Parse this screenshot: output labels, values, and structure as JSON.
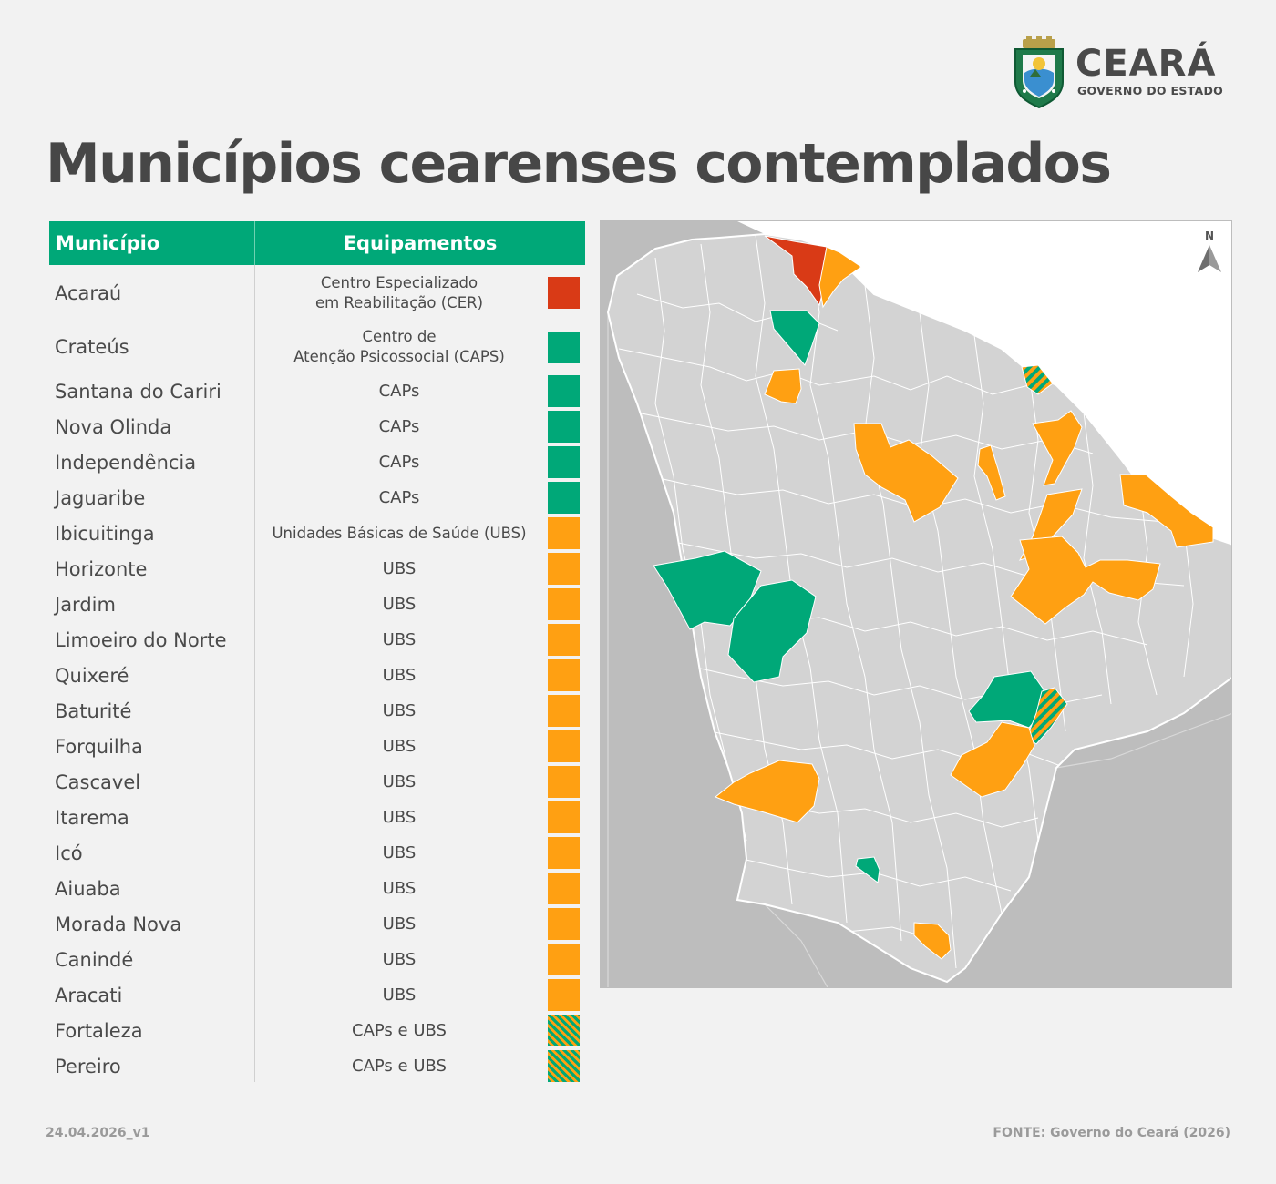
{
  "header": {
    "logo_name": "CEARÁ",
    "logo_subtitle": "GOVERNO DO ESTADO",
    "title": "Municípios cearenses contemplados"
  },
  "table": {
    "col_municipio": "Município",
    "col_equipamentos": "Equipamentos",
    "rows": [
      {
        "municipio": "Acaraú",
        "equip_line1": "Centro Especializado",
        "equip_line2": "em Reabilitação (CER)",
        "category": "CER"
      },
      {
        "municipio": "Crateús",
        "equip_line1": "Centro de",
        "equip_line2": "Atenção Psicossocial (CAPS)",
        "category": "CAPS"
      },
      {
        "municipio": "Santana do Cariri",
        "equipamento": "CAPs",
        "category": "CAPS"
      },
      {
        "municipio": "Nova Olinda",
        "equipamento": "CAPs",
        "category": "CAPS"
      },
      {
        "municipio": "Independência",
        "equipamento": "CAPs",
        "category": "CAPS"
      },
      {
        "municipio": "Jaguaribe",
        "equipamento": "CAPs",
        "category": "CAPS"
      },
      {
        "municipio": "Ibicuitinga",
        "equipamento": "Unidades Básicas de Saúde (UBS)",
        "category": "UBS"
      },
      {
        "municipio": "Horizonte",
        "equipamento": "UBS",
        "category": "UBS"
      },
      {
        "municipio": "Jardim",
        "equipamento": "UBS",
        "category": "UBS"
      },
      {
        "municipio": "Limoeiro do Norte",
        "equipamento": "UBS",
        "category": "UBS"
      },
      {
        "municipio": "Quixeré",
        "equipamento": "UBS",
        "category": "UBS"
      },
      {
        "municipio": "Baturité",
        "equipamento": "UBS",
        "category": "UBS"
      },
      {
        "municipio": "Forquilha",
        "equipamento": "UBS",
        "category": "UBS"
      },
      {
        "municipio": "Cascavel",
        "equipamento": "UBS",
        "category": "UBS"
      },
      {
        "municipio": "Itarema",
        "equipamento": "UBS",
        "category": "UBS"
      },
      {
        "municipio": "Icó",
        "equipamento": "UBS",
        "category": "UBS"
      },
      {
        "municipio": "Aiuaba",
        "equipamento": "UBS",
        "category": "UBS"
      },
      {
        "municipio": "Morada Nova",
        "equipamento": "UBS",
        "category": "UBS"
      },
      {
        "municipio": "Canindé",
        "equipamento": "UBS",
        "category": "UBS"
      },
      {
        "municipio": "Aracati",
        "equipamento": "UBS",
        "category": "UBS"
      },
      {
        "municipio": "Fortaleza",
        "equipamento": "CAPs e UBS",
        "category": "CAPS_UBS"
      },
      {
        "municipio": "Pereiro",
        "equipamento": "CAPs e UBS",
        "category": "CAPS_UBS"
      }
    ]
  },
  "colors": {
    "CER": "#d93a16",
    "CAPS": "#00a878",
    "UBS": "#ffa012",
    "header_green": "#00a878",
    "map_land": "#d3d3d3",
    "map_neighbor": "#bdbdbd"
  },
  "map": {
    "north_label": "N"
  },
  "footer": {
    "version": "24.04.2026_v1",
    "source": "FONTE: Governo do Ceará (2026)"
  }
}
